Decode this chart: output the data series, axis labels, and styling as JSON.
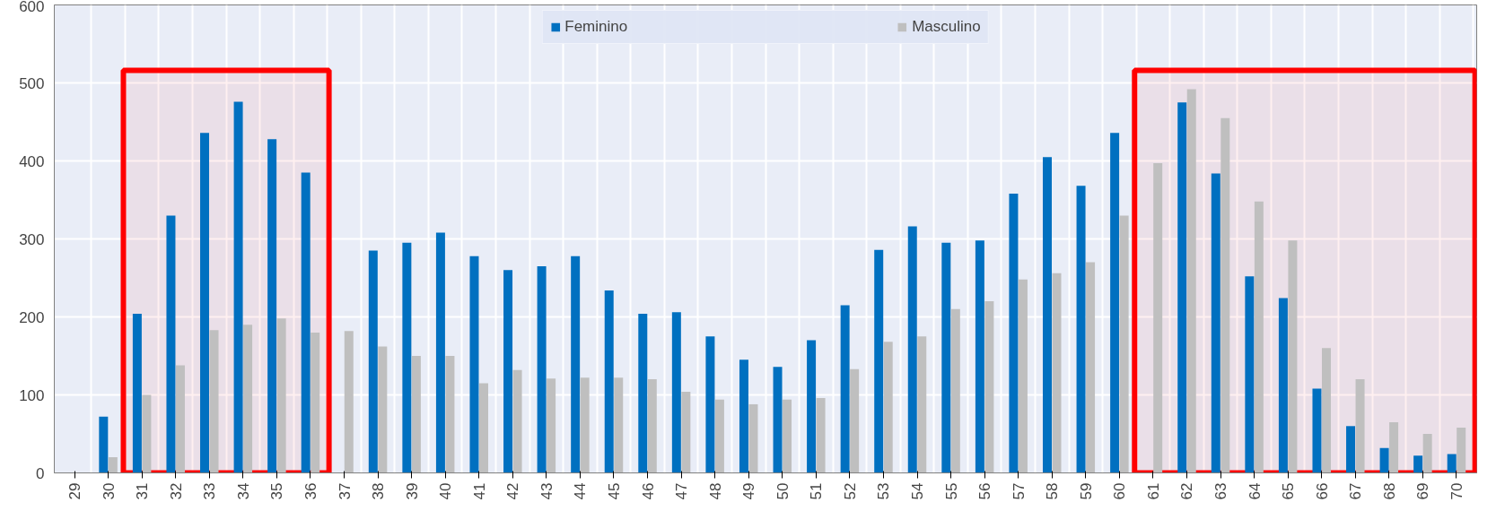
{
  "chart_data": {
    "type": "bar",
    "categories": [
      "29",
      "30",
      "31",
      "32",
      "33",
      "34",
      "35",
      "36",
      "37",
      "38",
      "39",
      "40",
      "41",
      "42",
      "43",
      "44",
      "45",
      "46",
      "47",
      "48",
      "49",
      "50",
      "51",
      "52",
      "53",
      "54",
      "55",
      "56",
      "57",
      "58",
      "59",
      "60",
      "61",
      "62",
      "63",
      "64",
      "65",
      "66",
      "67",
      "68",
      "69",
      "70"
    ],
    "series": [
      {
        "name": "Feminino",
        "color": "#0070c0",
        "values": [
          0,
          72,
          204,
          330,
          436,
          476,
          428,
          385,
          null,
          285,
          295,
          308,
          278,
          260,
          265,
          278,
          234,
          204,
          206,
          175,
          145,
          136,
          170,
          215,
          286,
          316,
          295,
          298,
          358,
          405,
          368,
          436,
          null,
          475,
          384,
          252,
          224,
          108,
          60,
          32,
          22,
          24
        ]
      },
      {
        "name": "Masculino",
        "color": "#bfbfbf",
        "values": [
          0,
          20,
          100,
          138,
          183,
          190,
          198,
          180,
          182,
          162,
          150,
          150,
          115,
          132,
          121,
          122,
          122,
          120,
          104,
          94,
          88,
          94,
          96,
          133,
          168,
          175,
          210,
          220,
          248,
          256,
          270,
          330,
          397,
          492,
          455,
          348,
          298,
          160,
          120,
          65,
          50,
          58
        ]
      }
    ],
    "ylim": [
      0,
      600
    ],
    "yticks": [
      0,
      100,
      200,
      300,
      400,
      500,
      600
    ],
    "grid": true,
    "legend": "top",
    "bands": [
      {
        "axis": "x",
        "from": "31",
        "to": "36",
        "color": "#ff0000"
      },
      {
        "axis": "x",
        "from": "61",
        "to": "70",
        "color": "#ff0000"
      }
    ]
  }
}
